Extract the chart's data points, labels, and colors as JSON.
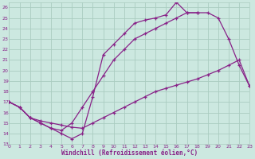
{
  "xlabel": "Windchill (Refroidissement éolien,°C)",
  "bg_color": "#cce8e0",
  "grid_color": "#aaccc0",
  "line_color": "#882288",
  "xmin": 0,
  "xmax": 23,
  "ymin": 13,
  "ymax": 26.5,
  "line1_x": [
    0,
    1,
    2,
    3,
    4,
    5,
    6,
    7,
    8,
    9,
    10,
    11,
    12,
    13,
    14,
    15,
    16,
    17,
    18,
    19,
    20,
    21,
    22,
    23
  ],
  "line1_y": [
    17.0,
    16.5,
    15.5,
    15.2,
    15.0,
    14.8,
    14.6,
    14.5,
    15.0,
    15.5,
    16.0,
    16.5,
    17.0,
    17.5,
    18.0,
    18.3,
    18.6,
    18.9,
    19.2,
    19.6,
    20.0,
    20.5,
    21.0,
    18.5
  ],
  "line2_x": [
    0,
    1,
    2,
    3,
    4,
    5,
    6,
    7,
    8,
    9,
    10,
    11,
    12,
    13,
    14,
    15,
    16,
    17,
    18,
    19,
    20,
    21,
    22,
    23
  ],
  "line2_y": [
    17.0,
    16.5,
    15.5,
    15.0,
    14.5,
    14.3,
    15.0,
    16.5,
    18.0,
    19.5,
    21.0,
    22.0,
    23.0,
    23.5,
    24.0,
    24.5,
    25.0,
    25.5,
    25.5,
    25.5,
    25.0,
    23.0,
    20.5,
    18.5
  ],
  "line3_x": [
    0,
    1,
    2,
    3,
    4,
    5,
    6,
    7,
    8,
    9,
    10,
    11,
    12,
    13,
    14,
    15,
    16,
    17,
    18
  ],
  "line3_y": [
    17.0,
    16.5,
    15.5,
    15.0,
    14.5,
    14.0,
    13.5,
    14.0,
    17.5,
    21.5,
    22.5,
    23.5,
    24.5,
    24.8,
    25.0,
    25.3,
    26.5,
    25.5,
    25.5
  ],
  "yticks": [
    13,
    14,
    15,
    16,
    17,
    18,
    19,
    20,
    21,
    22,
    23,
    24,
    25,
    26
  ],
  "xticks": [
    0,
    1,
    2,
    3,
    4,
    5,
    6,
    7,
    8,
    9,
    10,
    11,
    12,
    13,
    14,
    15,
    16,
    17,
    18,
    19,
    20,
    21,
    22,
    23
  ]
}
